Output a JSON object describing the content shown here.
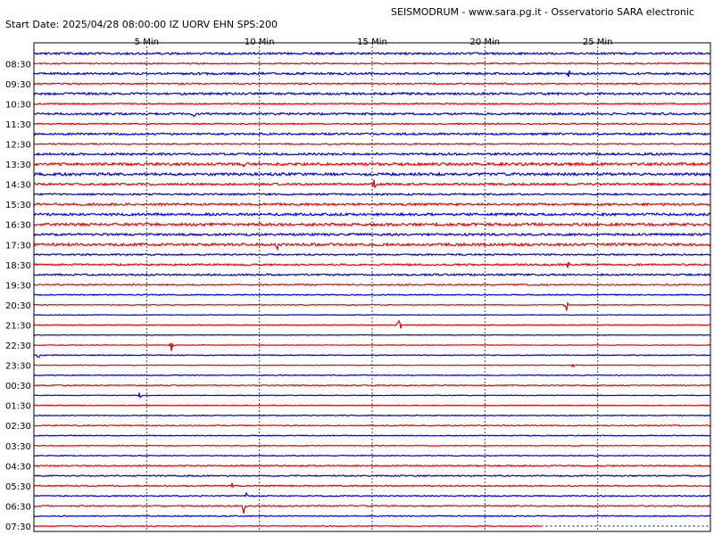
{
  "header": {
    "title": "SEISMODRUM - www.sara.pg.it - Osservatorio SARA electronic",
    "start_info": "Start Date: 2025/04/28 08:00:00 IZ UORV   EHN  SPS:200"
  },
  "colors": {
    "trace_a": "#0000dd",
    "trace_b": "#ee0000",
    "border": "#000000",
    "minute_grid": "#444444"
  },
  "chart_data": {
    "type": "line",
    "title": "",
    "x_unit": "minutes",
    "xlim": [
      0,
      30
    ],
    "minute_ticks": [
      5,
      10,
      15,
      20,
      25
    ],
    "minute_tick_labels": [
      "5 Min",
      "10 Min",
      "15 Min",
      "20 Min",
      "25 Min"
    ],
    "row_count": 48,
    "row_minutes": 30,
    "hour_labels": [
      "08:30",
      "09:30",
      "10:30",
      "11:30",
      "12:30",
      "13:30",
      "14:30",
      "15:30",
      "16:30",
      "17:30",
      "18:30",
      "19:30",
      "20:30",
      "21:30",
      "22:30",
      "23:30",
      "00:30",
      "01:30",
      "02:30",
      "03:30",
      "04:30",
      "05:30",
      "06:30",
      "07:30"
    ],
    "noise_levels": [
      0.9,
      0.6,
      1.0,
      0.6,
      1.0,
      0.6,
      0.9,
      0.6,
      0.9,
      0.6,
      1.0,
      1.2,
      1.2,
      1.0,
      0.8,
      1.0,
      1.1,
      1.2,
      1.0,
      1.2,
      0.7,
      0.8,
      0.8,
      0.6,
      0.5,
      0.4,
      0.3,
      0.3,
      0.3,
      0.3,
      0.4,
      0.3,
      0.4,
      0.4,
      0.3,
      0.3,
      0.4,
      0.5,
      0.4,
      0.4,
      0.4,
      0.6,
      0.6,
      0.6,
      0.5,
      0.6,
      0.5,
      0.4
    ],
    "events": [
      {
        "row": 0,
        "minute": 23.1,
        "amplitude": 1.5
      },
      {
        "row": 2,
        "minute": 23.7,
        "amplitude": 2.5
      },
      {
        "row": 6,
        "minute": 7.1,
        "amplitude": 2.0
      },
      {
        "row": 11,
        "minute": 9.3,
        "amplitude": 2.0
      },
      {
        "row": 13,
        "minute": 15.1,
        "amplitude": 2.0
      },
      {
        "row": 19,
        "minute": 10.8,
        "amplitude": 1.3
      },
      {
        "row": 21,
        "minute": 23.7,
        "amplitude": 2.0
      },
      {
        "row": 25,
        "minute": 23.6,
        "amplitude": 4.0
      },
      {
        "row": 27,
        "minute": 16.2,
        "amplitude": 6.0
      },
      {
        "row": 29,
        "minute": 6.1,
        "amplitude": 2.5
      },
      {
        "row": 30,
        "minute": 0.2,
        "amplitude": 2.5
      },
      {
        "row": 31,
        "minute": 23.9,
        "amplitude": 1.3
      },
      {
        "row": 34,
        "minute": 4.7,
        "amplitude": 1.5
      },
      {
        "row": 43,
        "minute": 8.8,
        "amplitude": 2.5
      },
      {
        "row": 44,
        "minute": 9.4,
        "amplitude": 2.0
      },
      {
        "row": 45,
        "minute": 9.3,
        "amplitude": 2.5
      },
      {
        "row": 47,
        "minute": 24.6,
        "amplitude": 2.0
      }
    ],
    "last_row_end_minute": 22.5,
    "grid": true,
    "legend": "none"
  }
}
